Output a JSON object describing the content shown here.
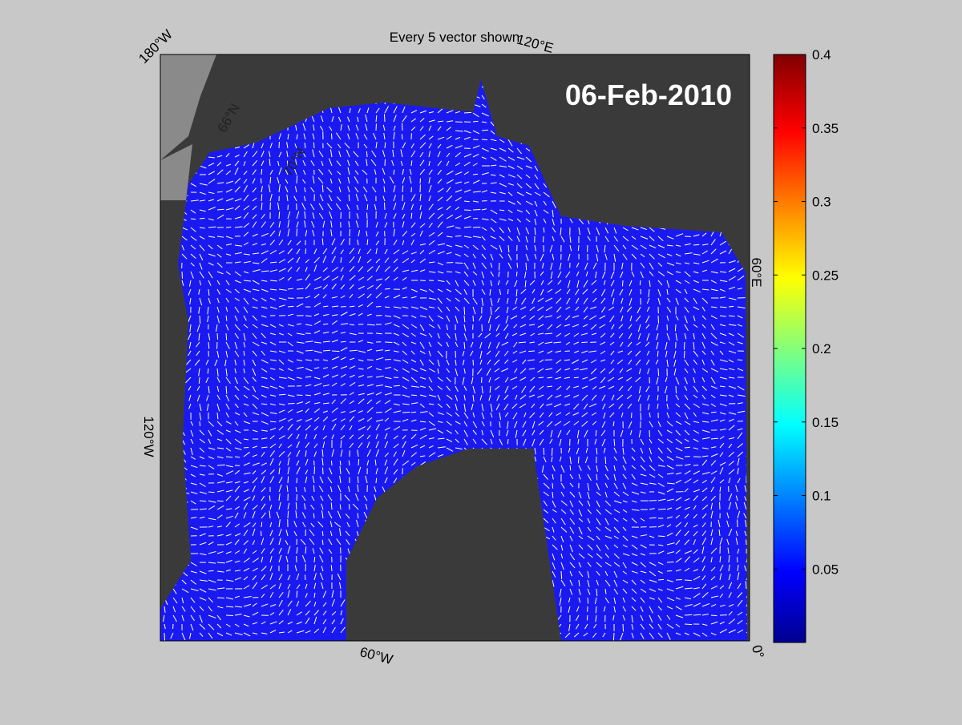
{
  "title": "Every 5 vector shown",
  "date": "06-Feb-2010",
  "map_labels": [
    "180°W",
    "120°E",
    "60°E",
    "0°",
    "60°W",
    "120°W",
    "66°N",
    "70°N"
  ],
  "colorbar": {
    "lim": [
      0,
      0.4
    ],
    "ticks": [
      0.05,
      0.1,
      0.15,
      0.2,
      0.25,
      0.3,
      0.35,
      0.4
    ]
  }
}
